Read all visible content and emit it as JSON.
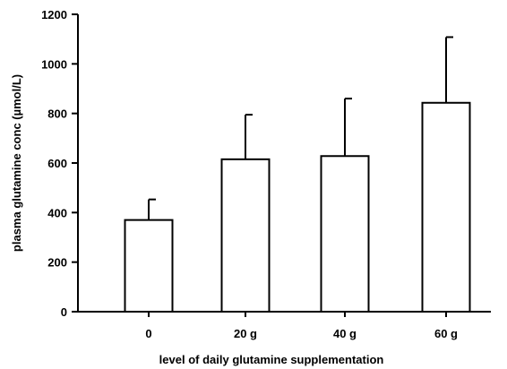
{
  "chart_data": {
    "type": "bar",
    "categories": [
      "0",
      "20 g",
      "40 g",
      "60 g"
    ],
    "values": [
      370,
      615,
      628,
      843
    ],
    "error_upper": [
      453,
      795,
      860,
      1108
    ],
    "xlabel": "level of daily glutamine supplementation",
    "ylabel": "plasma glutamine conc (µmol/L)",
    "ylim": [
      0,
      1200
    ],
    "yticks": [
      0,
      200,
      400,
      600,
      800,
      1000,
      1200
    ],
    "grid": false,
    "legend": "none",
    "colors": {
      "bar_fill": "#ffffff",
      "bar_stroke": "#000000",
      "axis": "#000000",
      "error_bar": "#000000"
    }
  }
}
